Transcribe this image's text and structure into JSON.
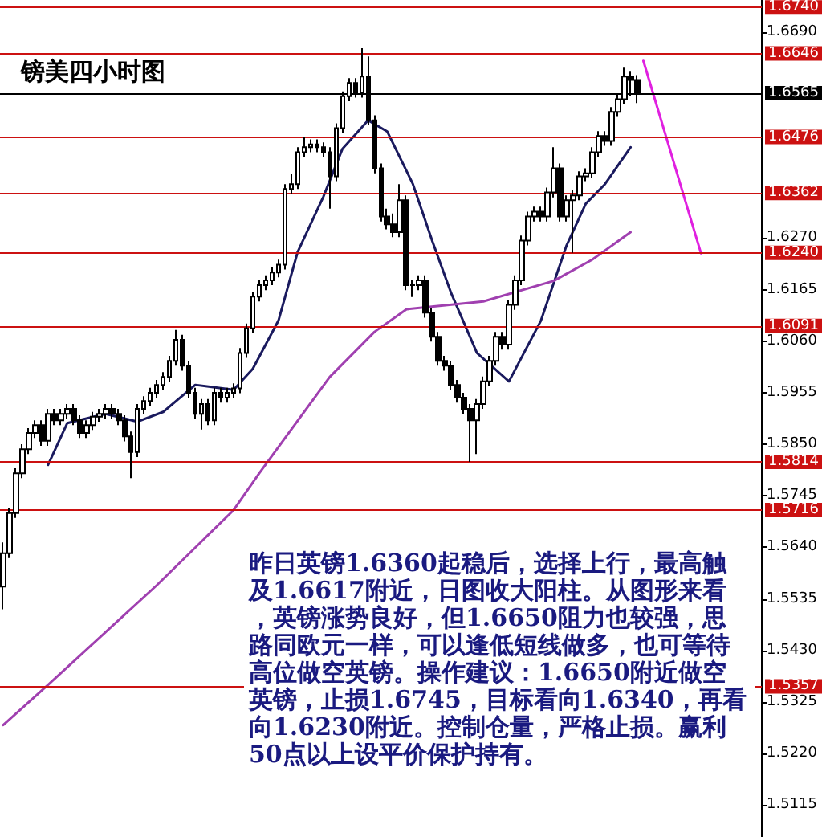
{
  "chart_data": {
    "type": "candlestick",
    "title": "镑美四小时图",
    "color": "#000000",
    "grid": false,
    "tick_labels": "y",
    "annotations": [
      "昨日英镑1.6360起稳后，选择上行，最高触及1.6617附近，日图收大阳柱。从图形来看，英镑涨势良好，但1.6650阻力也较强，思路同欧元一样，可以逢低短线做多，也可等待高位做空英镑。操作建议：1.6650附近做空英镑，止损1.6745，目标看向1.6340，再看向1.6230附近。控制仓量，严格止损。赢利50点以上设平价保护持有。"
    ],
    "categories": [
      null,
      null,
      null,
      null,
      null,
      null,
      null,
      null,
      null,
      null,
      null,
      null,
      null,
      null,
      null,
      null,
      null,
      null,
      null,
      null,
      null,
      null,
      null,
      null,
      null,
      null,
      null,
      null,
      null,
      null,
      null,
      null,
      null,
      null,
      null,
      null,
      null,
      null,
      null,
      null,
      null,
      null,
      null,
      null,
      null,
      null,
      null,
      null,
      null,
      null,
      null,
      null,
      null,
      null,
      null,
      null,
      null,
      null,
      null,
      null,
      null,
      null,
      null,
      null,
      null,
      null,
      null,
      null,
      null,
      null,
      null,
      null,
      null,
      null,
      null,
      null,
      null,
      null,
      null,
      null,
      null,
      null,
      null,
      null,
      null,
      null,
      null,
      null,
      null,
      null,
      null,
      null,
      null,
      null,
      null,
      null,
      null,
      null,
      null,
      null,
      null,
      null,
      null,
      null,
      null,
      null,
      null,
      null,
      null,
      null,
      null,
      null,
      null,
      null,
      null,
      null,
      null,
      null,
      null
    ],
    "ohlc": [
      [
        1.556,
        1.565,
        1.5514,
        1.5628
      ],
      [
        1.5628,
        1.572,
        1.5618,
        1.571
      ],
      [
        1.571,
        1.5801,
        1.57,
        1.5791
      ],
      [
        1.5791,
        1.585,
        1.5781,
        1.584
      ],
      [
        1.584,
        1.5883,
        1.583,
        1.5873
      ],
      [
        1.5873,
        1.5899,
        1.5863,
        1.5889
      ],
      [
        1.5889,
        1.5899,
        1.5847,
        1.5857
      ],
      [
        1.5857,
        1.5922,
        1.5847,
        1.5912
      ],
      [
        1.5912,
        1.5922,
        1.5889,
        1.5899
      ],
      [
        1.5899,
        1.5922,
        1.5889,
        1.5912
      ],
      [
        1.5912,
        1.5932,
        1.5902,
        1.5922
      ],
      [
        1.5922,
        1.5932,
        1.5889,
        1.5899
      ],
      [
        1.5899,
        1.5909,
        1.5863,
        1.5873
      ],
      [
        1.5873,
        1.5899,
        1.5863,
        1.5889
      ],
      [
        1.5889,
        1.5916,
        1.5879,
        1.5906
      ],
      [
        1.5906,
        1.5922,
        1.5896,
        1.5912
      ],
      [
        1.5912,
        1.5932,
        1.5902,
        1.5922
      ],
      [
        1.5922,
        1.5932,
        1.5902,
        1.5912
      ],
      [
        1.5912,
        1.5922,
        1.5889,
        1.5899
      ],
      [
        1.5899,
        1.5909,
        1.5856,
        1.5866
      ],
      [
        1.5866,
        1.5876,
        1.5781,
        1.5834
      ],
      [
        1.5834,
        1.5932,
        1.5824,
        1.5922
      ],
      [
        1.5922,
        1.5948,
        1.5912,
        1.5938
      ],
      [
        1.5938,
        1.5965,
        1.5928,
        1.5955
      ],
      [
        1.5955,
        1.5981,
        1.5945,
        1.5971
      ],
      [
        1.5971,
        1.5997,
        1.5961,
        1.5987
      ],
      [
        1.5987,
        1.603,
        1.5977,
        1.602
      ],
      [
        1.602,
        1.6083,
        1.601,
        1.6063
      ],
      [
        1.6063,
        1.6073,
        1.6,
        1.601
      ],
      [
        1.601,
        1.602,
        1.5945,
        1.5955
      ],
      [
        1.5955,
        1.5965,
        1.5902,
        1.5912
      ],
      [
        1.5912,
        1.5942,
        1.588,
        1.5932
      ],
      [
        1.5932,
        1.5942,
        1.5889,
        1.5899
      ],
      [
        1.5899,
        1.5965,
        1.5889,
        1.5955
      ],
      [
        1.5955,
        1.5965,
        1.5935,
        1.5945
      ],
      [
        1.5945,
        1.5965,
        1.5935,
        1.5955
      ],
      [
        1.5955,
        1.5974,
        1.5945,
        1.5964
      ],
      [
        1.5964,
        1.6046,
        1.5954,
        1.6036
      ],
      [
        1.6036,
        1.6096,
        1.6026,
        1.6086
      ],
      [
        1.6086,
        1.6161,
        1.6076,
        1.6151
      ],
      [
        1.6151,
        1.6184,
        1.6141,
        1.6174
      ],
      [
        1.6174,
        1.6194,
        1.6164,
        1.6184
      ],
      [
        1.6184,
        1.621,
        1.6174,
        1.62
      ],
      [
        1.62,
        1.6226,
        1.619,
        1.6216
      ],
      [
        1.6216,
        1.638,
        1.6206,
        1.637
      ],
      [
        1.637,
        1.64,
        1.636,
        1.638
      ],
      [
        1.638,
        1.6455,
        1.637,
        1.6445
      ],
      [
        1.6445,
        1.6475,
        1.6435,
        1.6455
      ],
      [
        1.6455,
        1.6471,
        1.6445,
        1.6461
      ],
      [
        1.6461,
        1.6471,
        1.6445,
        1.6455
      ],
      [
        1.6455,
        1.6465,
        1.6435,
        1.6445
      ],
      [
        1.6445,
        1.6455,
        1.633,
        1.6396
      ],
      [
        1.6396,
        1.6504,
        1.6386,
        1.6494
      ],
      [
        1.6494,
        1.6569,
        1.6484,
        1.6559
      ],
      [
        1.6559,
        1.6596,
        1.6549,
        1.6586
      ],
      [
        1.6586,
        1.6596,
        1.6556,
        1.6566
      ],
      [
        1.6566,
        1.6657,
        1.6556,
        1.6599
      ],
      [
        1.6599,
        1.664,
        1.65,
        1.651
      ],
      [
        1.651,
        1.652,
        1.6402,
        1.6412
      ],
      [
        1.6412,
        1.6422,
        1.6304,
        1.6314
      ],
      [
        1.6314,
        1.633,
        1.6288,
        1.6298
      ],
      [
        1.6298,
        1.632,
        1.6272,
        1.6282
      ],
      [
        1.6282,
        1.638,
        1.6272,
        1.6347
      ],
      [
        1.6347,
        1.6357,
        1.6164,
        1.6174
      ],
      [
        1.6174,
        1.6184,
        1.615,
        1.6174
      ],
      [
        1.6174,
        1.6194,
        1.6164,
        1.6184
      ],
      [
        1.6184,
        1.6194,
        1.6108,
        1.6118
      ],
      [
        1.6118,
        1.6128,
        1.6059,
        1.6069
      ],
      [
        1.6069,
        1.6079,
        1.601,
        1.602
      ],
      [
        1.602,
        1.603,
        1.6,
        1.601
      ],
      [
        1.601,
        1.602,
        1.5961,
        1.5971
      ],
      [
        1.5971,
        1.5981,
        1.5935,
        1.5945
      ],
      [
        1.5945,
        1.5955,
        1.5912,
        1.5922
      ],
      [
        1.5922,
        1.5932,
        1.5814,
        1.5899
      ],
      [
        1.5899,
        1.5942,
        1.583,
        1.5932
      ],
      [
        1.5932,
        1.5988,
        1.5922,
        1.5978
      ],
      [
        1.5978,
        1.603,
        1.5968,
        1.602
      ],
      [
        1.602,
        1.6079,
        1.601,
        1.6069
      ],
      [
        1.6069,
        1.6079,
        1.6043,
        1.6053
      ],
      [
        1.6053,
        1.6144,
        1.6043,
        1.6134
      ],
      [
        1.6134,
        1.6194,
        1.6124,
        1.6184
      ],
      [
        1.6184,
        1.6275,
        1.6174,
        1.6265
      ],
      [
        1.6265,
        1.6324,
        1.6255,
        1.6314
      ],
      [
        1.6314,
        1.6334,
        1.6304,
        1.6324
      ],
      [
        1.6324,
        1.6334,
        1.6304,
        1.6314
      ],
      [
        1.6314,
        1.6373,
        1.6304,
        1.6363
      ],
      [
        1.6363,
        1.6455,
        1.6353,
        1.6412
      ],
      [
        1.6412,
        1.6422,
        1.6304,
        1.6314
      ],
      [
        1.6314,
        1.6357,
        1.6304,
        1.6347
      ],
      [
        1.6347,
        1.6367,
        1.624,
        1.6357
      ],
      [
        1.6357,
        1.6406,
        1.6347,
        1.6396
      ],
      [
        1.6396,
        1.6412,
        1.6386,
        1.6402
      ],
      [
        1.6402,
        1.6455,
        1.6392,
        1.6445
      ],
      [
        1.6445,
        1.6488,
        1.6435,
        1.6478
      ],
      [
        1.6478,
        1.6488,
        1.6458,
        1.6468
      ],
      [
        1.6468,
        1.6537,
        1.6458,
        1.6527
      ],
      [
        1.6527,
        1.6563,
        1.6517,
        1.6553
      ],
      [
        1.6553,
        1.6617,
        1.6543,
        1.6599
      ],
      [
        1.6599,
        1.6609,
        1.656,
        1.6592
      ],
      [
        1.6592,
        1.6602,
        1.6545,
        1.6565
      ],
      null,
      null,
      null,
      null,
      null,
      null,
      null,
      null,
      null,
      null,
      null,
      null,
      null,
      null,
      null,
      null,
      null,
      null,
      null
    ],
    "series": [
      {
        "type": "line",
        "color": "#1a1a5e",
        "values": [
          null,
          null,
          null,
          null,
          null,
          null,
          null,
          1.5808,
          null,
          null,
          1.5893,
          null,
          null,
          null,
          null,
          null,
          1.5912,
          null,
          null,
          null,
          null,
          1.5896,
          null,
          null,
          null,
          1.5916,
          null,
          null,
          null,
          null,
          1.5971,
          null,
          null,
          null,
          null,
          null,
          1.5961,
          null,
          null,
          1.6004,
          null,
          null,
          null,
          1.6102,
          null,
          null,
          1.6242,
          null,
          null,
          null,
          1.6354,
          null,
          null,
          1.6452,
          null,
          null,
          null,
          1.651,
          null,
          null,
          1.6487,
          null,
          null,
          null,
          1.638,
          null,
          null,
          1.6265,
          null,
          null,
          1.6157,
          null,
          null,
          null,
          1.6036,
          null,
          null,
          null,
          null,
          1.5978,
          null,
          null,
          null,
          null,
          1.6102,
          null,
          null,
          null,
          1.6255,
          null,
          null,
          1.634,
          null,
          null,
          1.638,
          null,
          null,
          null,
          1.6455,
          null,
          null,
          null,
          null,
          null,
          null,
          null,
          null,
          null,
          null,
          null,
          null,
          null,
          null,
          null,
          null,
          null,
          null,
          null,
          null
        ]
      },
      {
        "type": "line",
        "color": "#a040b0",
        "values": [
          1.5278,
          null,
          null,
          null,
          null,
          null,
          null,
          1.536,
          null,
          null,
          null,
          null,
          null,
          null,
          null,
          null,
          null,
          null,
          null,
          null,
          null,
          null,
          null,
          null,
          1.5563,
          null,
          null,
          null,
          null,
          null,
          null,
          null,
          null,
          null,
          null,
          null,
          1.5716,
          null,
          null,
          null,
          1.5791,
          null,
          null,
          null,
          null,
          null,
          null,
          null,
          null,
          null,
          null,
          1.5987,
          null,
          null,
          null,
          null,
          null,
          null,
          1.6079,
          null,
          null,
          null,
          null,
          1.6125,
          null,
          null,
          null,
          null,
          null,
          null,
          null,
          null,
          null,
          null,
          null,
          1.6141,
          null,
          null,
          null,
          null,
          null,
          null,
          null,
          null,
          null,
          null,
          1.6183,
          null,
          null,
          null,
          null,
          null,
          1.6226,
          null,
          null,
          null,
          null,
          null,
          1.6282,
          null,
          null,
          null,
          null,
          null,
          null,
          null,
          null,
          null,
          null,
          null,
          null,
          null,
          null,
          null,
          null,
          null,
          null,
          null,
          null
        ]
      },
      {
        "type": "line",
        "color": "#e020e0",
        "values": [
          null,
          null,
          null,
          null,
          null,
          null,
          null,
          null,
          null,
          null,
          null,
          null,
          null,
          null,
          null,
          null,
          null,
          null,
          null,
          null,
          null,
          null,
          null,
          null,
          null,
          null,
          null,
          null,
          null,
          null,
          null,
          null,
          null,
          null,
          null,
          null,
          null,
          null,
          null,
          null,
          null,
          null,
          null,
          null,
          null,
          null,
          null,
          null,
          null,
          null,
          null,
          null,
          null,
          null,
          null,
          null,
          null,
          null,
          null,
          null,
          null,
          null,
          null,
          null,
          null,
          null,
          null,
          null,
          null,
          null,
          null,
          null,
          null,
          null,
          null,
          null,
          null,
          null,
          null,
          null,
          null,
          null,
          null,
          null,
          null,
          null,
          null,
          null,
          null,
          null,
          null,
          null,
          null,
          null,
          null,
          null,
          null,
          null,
          null,
          null,
          1.6631,
          null,
          null,
          null,
          null,
          null,
          null,
          null,
          null,
          1.6239,
          null,
          null,
          null,
          null,
          null,
          null,
          null,
          null,
          null
        ]
      }
    ],
    "ylim": [
      1.505,
      1.6755
    ],
    "yticks": [
      {
        "value": 1.669,
        "label": "1.6690"
      },
      {
        "value": 1.627,
        "label": "1.6270"
      },
      {
        "value": 1.6165,
        "label": "1.6165"
      },
      {
        "value": 1.606,
        "label": "1.6060"
      },
      {
        "value": 1.5955,
        "label": "1.5955"
      },
      {
        "value": 1.585,
        "label": "1.5850"
      },
      {
        "value": 1.5745,
        "label": "1.5745"
      },
      {
        "value": 1.564,
        "label": "1.5640"
      },
      {
        "value": 1.5535,
        "label": "1.5535"
      },
      {
        "value": 1.543,
        "label": "1.5430"
      },
      {
        "value": 1.5325,
        "label": "1.5325"
      },
      {
        "value": 1.522,
        "label": "1.5220"
      },
      {
        "value": 1.5115,
        "label": "1.5115"
      }
    ],
    "ref_lines": [
      {
        "axis": "y",
        "value": 1.674,
        "label": "1.6740",
        "color": "#cc1111"
      },
      {
        "axis": "y",
        "value": 1.6646,
        "label": "1.6646",
        "color": "#cc1111"
      },
      {
        "axis": "y",
        "value": 1.6565,
        "label": "1.6565",
        "color": "#000000",
        "line_style": "solid"
      },
      {
        "axis": "y",
        "value": 1.6476,
        "label": "1.6476",
        "color": "#cc1111"
      },
      {
        "axis": "y",
        "value": 1.6362,
        "label": "1.6362",
        "color": "#cc1111"
      },
      {
        "axis": "y",
        "value": 1.624,
        "label": "1.6240",
        "color": "#cc1111"
      },
      {
        "axis": "y",
        "value": 1.6091,
        "label": "1.6091",
        "color": "#cc1111"
      },
      {
        "axis": "y",
        "value": 1.5814,
        "label": "1.5814",
        "color": "#cc1111"
      },
      {
        "axis": "y",
        "value": 1.5716,
        "label": "1.5716",
        "color": "#cc1111"
      },
      {
        "axis": "y",
        "value": 1.5357,
        "label": "1.5357",
        "color": "#cc1111"
      }
    ]
  }
}
